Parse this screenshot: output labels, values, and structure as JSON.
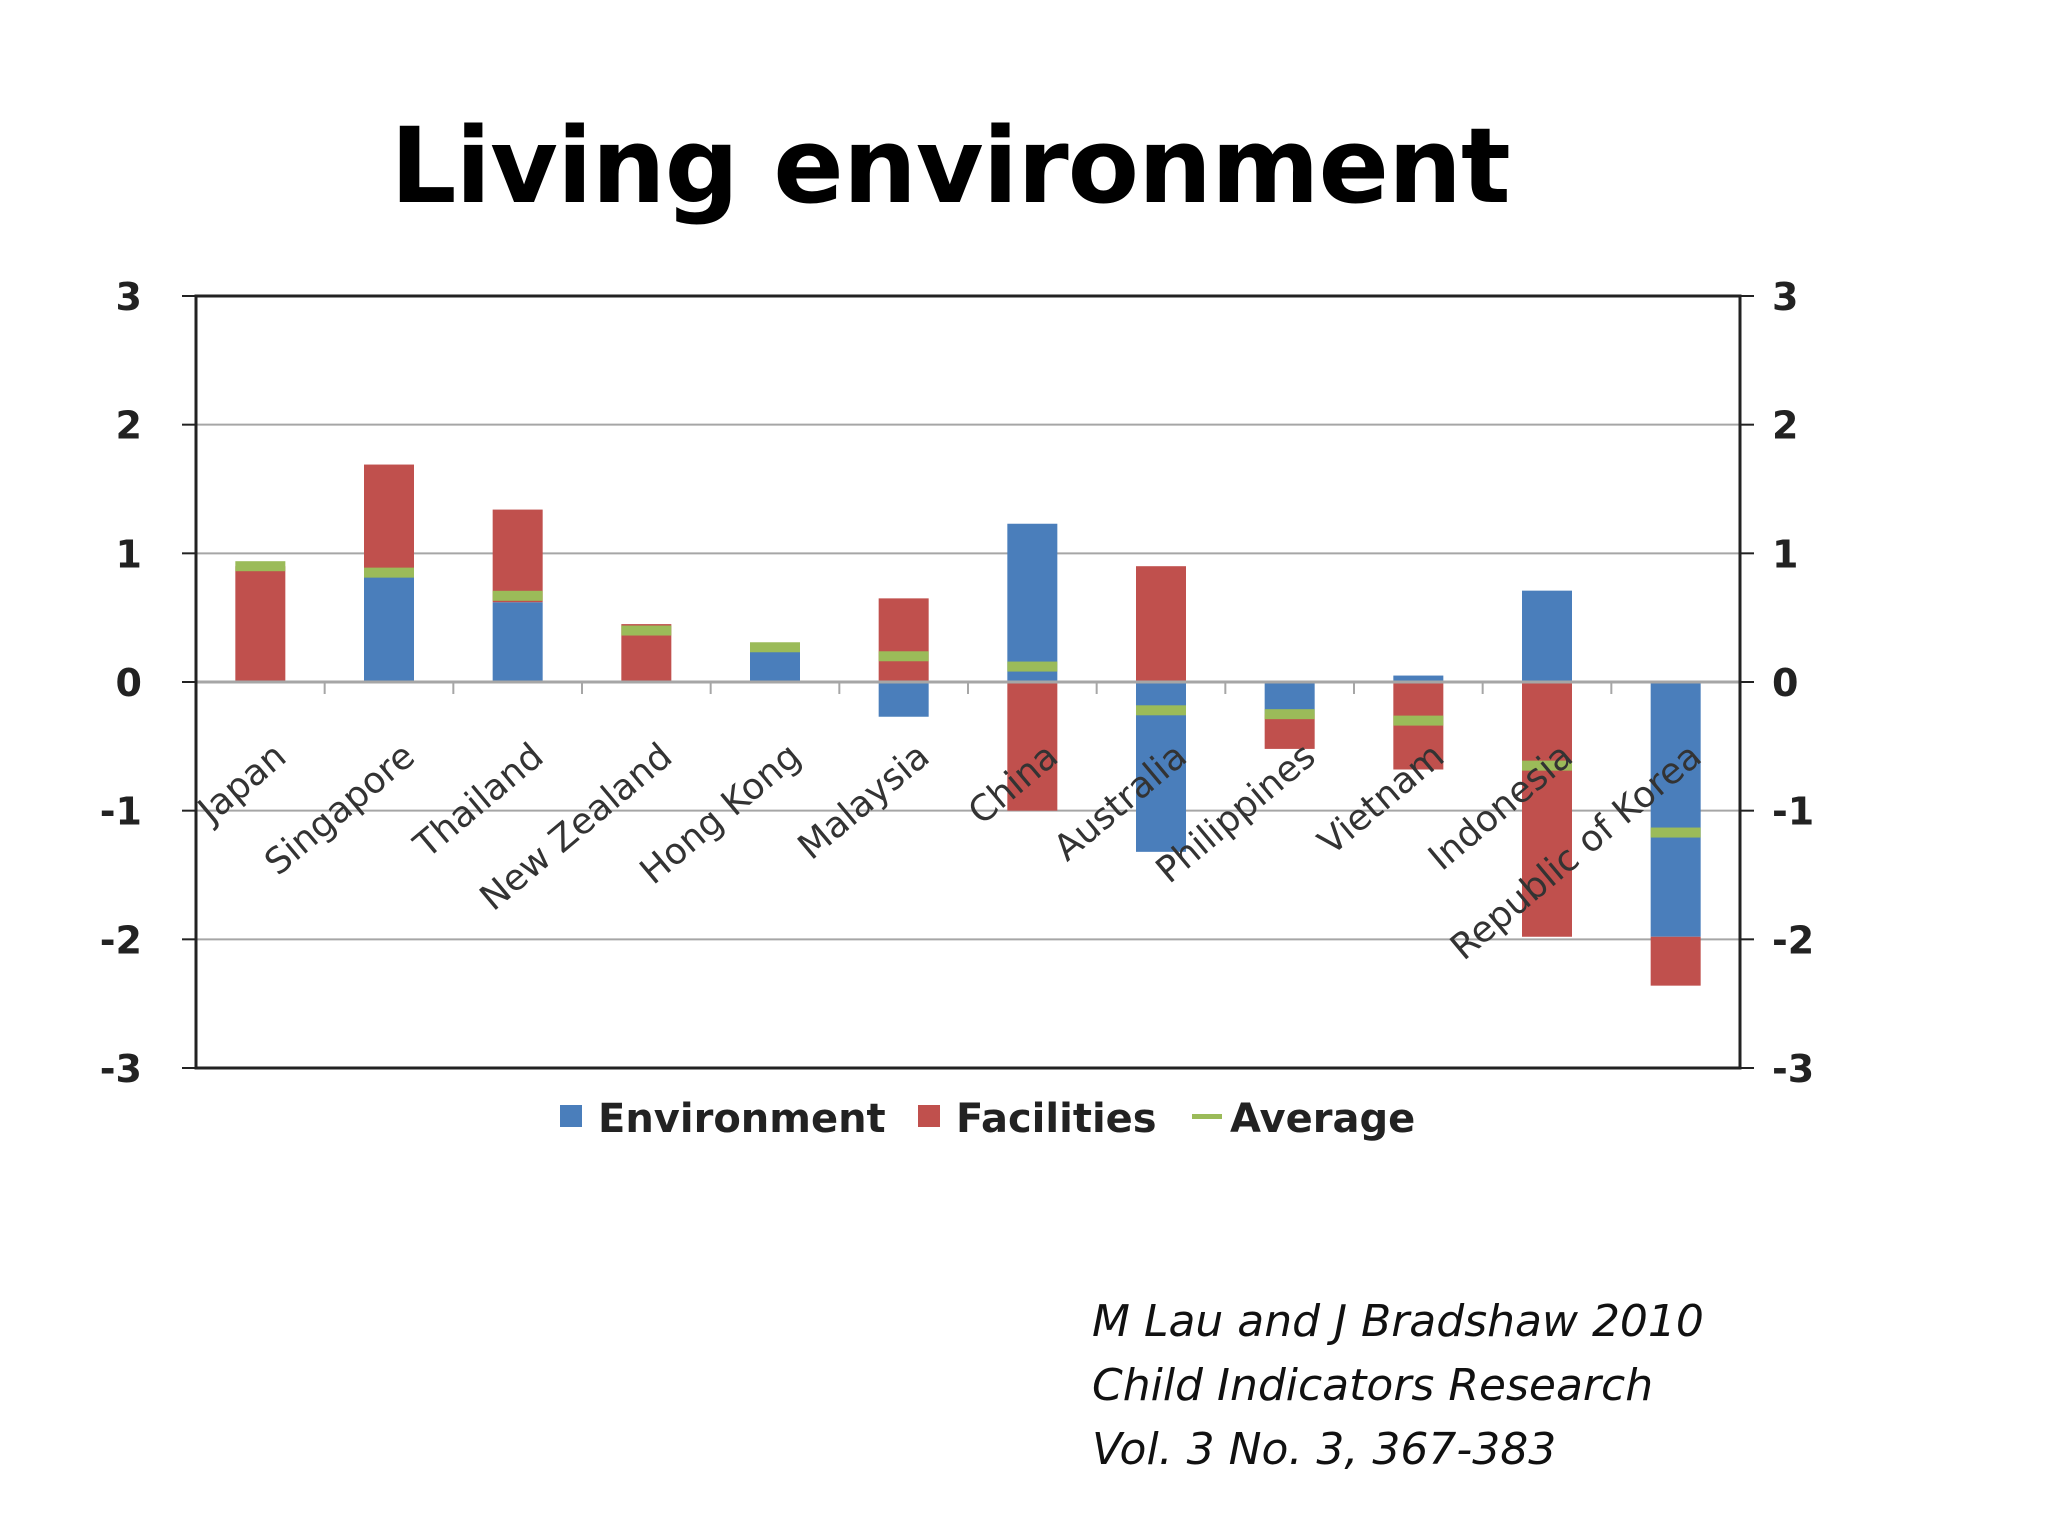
{
  "title": "Living environment",
  "citation": {
    "line1": "M Lau and J Bradshaw 2010",
    "line2": "Child Indicators Research",
    "line3": "Vol. 3 No. 3, 367-383"
  },
  "colors": {
    "environment": "#4a7ebb",
    "facilities": "#c0504d",
    "average": "#9bbb59",
    "grid": "#a6a6a6",
    "frame": "#222222"
  },
  "chart_data": {
    "type": "bar",
    "stacked": true,
    "categories": [
      "Japan",
      "Singapore",
      "Thailand",
      "New Zealand",
      "Hong Kong",
      "Malaysia",
      "China",
      "Australia",
      "Philippines",
      "Vietnam",
      "Indonesia",
      "Republic of Korea"
    ],
    "series": [
      {
        "name": "Environment",
        "type": "bar",
        "values": [
          0.0,
          0.85,
          0.62,
          0.0,
          0.25,
          -0.27,
          1.23,
          -1.32,
          -0.25,
          0.05,
          0.71,
          -1.98
        ]
      },
      {
        "name": "Facilities",
        "type": "bar",
        "values": [
          0.9,
          0.84,
          0.72,
          0.45,
          0.05,
          0.65,
          -1.0,
          0.9,
          -0.27,
          -0.68,
          -1.98,
          -0.38
        ]
      },
      {
        "name": "Average",
        "type": "line-marker",
        "values": [
          0.9,
          0.85,
          0.67,
          0.4,
          0.27,
          0.2,
          0.12,
          -0.22,
          -0.25,
          -0.3,
          -0.65,
          -1.17
        ]
      }
    ],
    "ylim": [
      -3,
      3
    ],
    "yticks": [
      "3",
      "2",
      "1",
      "0",
      "-1",
      "-2",
      "-3"
    ],
    "y_axis_secondary": true,
    "grid": true,
    "legend": "bottom",
    "legend_entries": [
      "Environment",
      "Facilities",
      "Average"
    ],
    "title": "",
    "xlabel": "",
    "ylabel": ""
  }
}
